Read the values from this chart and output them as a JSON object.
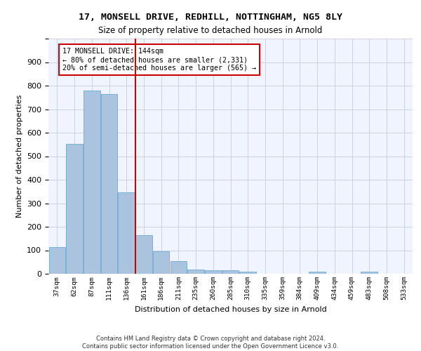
{
  "title1": "17, MONSELL DRIVE, REDHILL, NOTTINGHAM, NG5 8LY",
  "title2": "Size of property relative to detached houses in Arnold",
  "xlabel": "Distribution of detached houses by size in Arnold",
  "ylabel": "Number of detached properties",
  "categories": [
    "37sqm",
    "62sqm",
    "87sqm",
    "111sqm",
    "136sqm",
    "161sqm",
    "186sqm",
    "211sqm",
    "235sqm",
    "260sqm",
    "285sqm",
    "310sqm",
    "335sqm",
    "359sqm",
    "384sqm",
    "409sqm",
    "434sqm",
    "459sqm",
    "483sqm",
    "508sqm",
    "533sqm"
  ],
  "values": [
    113,
    553,
    778,
    765,
    345,
    165,
    97,
    53,
    18,
    14,
    14,
    9,
    0,
    0,
    0,
    8,
    0,
    0,
    9,
    0,
    0
  ],
  "bar_color": "#aac4e0",
  "bar_edge_color": "#6aaad4",
  "vline_x_index": 4,
  "vline_color": "#cc0000",
  "annotation_text": "17 MONSELL DRIVE: 144sqm\n← 80% of detached houses are smaller (2,331)\n20% of semi-detached houses are larger (565) →",
  "annotation_box_color": "#ffffff",
  "annotation_box_edge": "#cc0000",
  "ylim": [
    0,
    1000
  ],
  "yticks": [
    0,
    100,
    200,
    300,
    400,
    500,
    600,
    700,
    800,
    900,
    1000
  ],
  "footer1": "Contains HM Land Registry data © Crown copyright and database right 2024.",
  "footer2": "Contains public sector information licensed under the Open Government Licence v3.0.",
  "background_color": "#f0f4ff",
  "grid_color": "#c8cce0"
}
